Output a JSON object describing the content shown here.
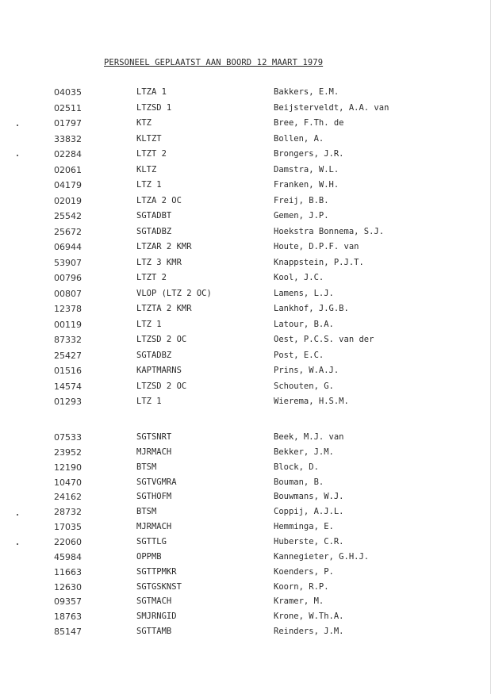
{
  "title": "PERSONEEL GEPLAATST AAN BOORD 12 MAART 1979",
  "officers": [
    {
      "number": "04035",
      "rank": "LTZA 1",
      "name": "Bakkers, E.M."
    },
    {
      "number": "02511",
      "rank": "LTZSD 1",
      "name": "Beijsterveldt, A.A. van"
    },
    {
      "number": "01797",
      "rank": "KTZ",
      "name": "Bree, F.Th. de"
    },
    {
      "number": "33832",
      "rank": "KLTZT",
      "name": "Bollen, A."
    },
    {
      "number": "02284",
      "rank": "LTZT 2",
      "name": "Brongers, J.R."
    },
    {
      "number": "02061",
      "rank": "KLTZ",
      "name": "Damstra, W.L."
    },
    {
      "number": "04179",
      "rank": "LTZ 1",
      "name": "Franken, W.H."
    },
    {
      "number": "02019",
      "rank": "LTZA 2 OC",
      "name": "Freij, B.B."
    },
    {
      "number": "25542",
      "rank": "SGTADBT",
      "name": "Gemen, J.P."
    },
    {
      "number": "25672",
      "rank": "SGTADBZ",
      "name": "Hoekstra Bonnema, S.J."
    },
    {
      "number": "06944",
      "rank": "LTZAR 2 KMR",
      "name": "Houte, D.P.F. van"
    },
    {
      "number": "53907",
      "rank": "LTZ 3 KMR",
      "name": "Knappstein, P.J.T."
    },
    {
      "number": "00796",
      "rank": "LTZT 2",
      "name": "Kool, J.C."
    },
    {
      "number": "00807",
      "rank": "VLOP  (LTZ 2 OC)",
      "name": "Lamens, L.J."
    },
    {
      "number": "12378",
      "rank": "LTZTA 2 KMR",
      "name": "Lankhof, J.G.B."
    },
    {
      "number": "00119",
      "rank": "LTZ 1",
      "name": "Latour, B.A."
    },
    {
      "number": "87332",
      "rank": "LTZSD 2 OC",
      "name": "Oest, P.C.S. van der"
    },
    {
      "number": "25427",
      "rank": "SGTADBZ",
      "name": "Post, E.C."
    },
    {
      "number": "01516",
      "rank": "KAPTMARNS",
      "name": "Prins, W.A.J."
    },
    {
      "number": "14574",
      "rank": "LTZSD 2 OC",
      "name": "Schouten, G."
    },
    {
      "number": "01293",
      "rank": "LTZ 1",
      "name": "Wierema, H.S.M."
    }
  ],
  "crew": [
    {
      "number": "07533",
      "rank": "SGTSNRT",
      "name": "Beek, M.J. van"
    },
    {
      "number": "23952",
      "rank": "MJRMACH",
      "name": "Bekker, J.M."
    },
    {
      "number": "12190",
      "rank": "BTSM",
      "name": "Block, D."
    },
    {
      "number": "10470",
      "rank": "SGTVGMRA",
      "name": "Bouman, B."
    },
    {
      "number": "24162",
      "rank": "SGTHOFM",
      "name": "Bouwmans, W.J."
    },
    {
      "number": "28732",
      "rank": "BTSM",
      "name": "Coppij, A.J.L."
    },
    {
      "number": "17035",
      "rank": "MJRMACH",
      "name": "Hemminga, E."
    },
    {
      "number": "22060",
      "rank": "SGTTLG",
      "name": "Huberste, C.R."
    },
    {
      "number": "45984",
      "rank": "OPPMB",
      "name": "Kannegieter, G.H.J."
    },
    {
      "number": "11663",
      "rank": "SGTTPMKR",
      "name": "Koenders, P."
    },
    {
      "number": "12630",
      "rank": "SGTGSKNST",
      "name": "Koorn, R.P."
    },
    {
      "number": "09357",
      "rank": "SGTMACH",
      "name": "Kramer, M."
    },
    {
      "number": "18763",
      "rank": "SMJRNGID",
      "name": "Krone, W.Th.A."
    },
    {
      "number": "85147",
      "rank": "SGTTAMB",
      "name": "Reinders, J.M."
    }
  ]
}
